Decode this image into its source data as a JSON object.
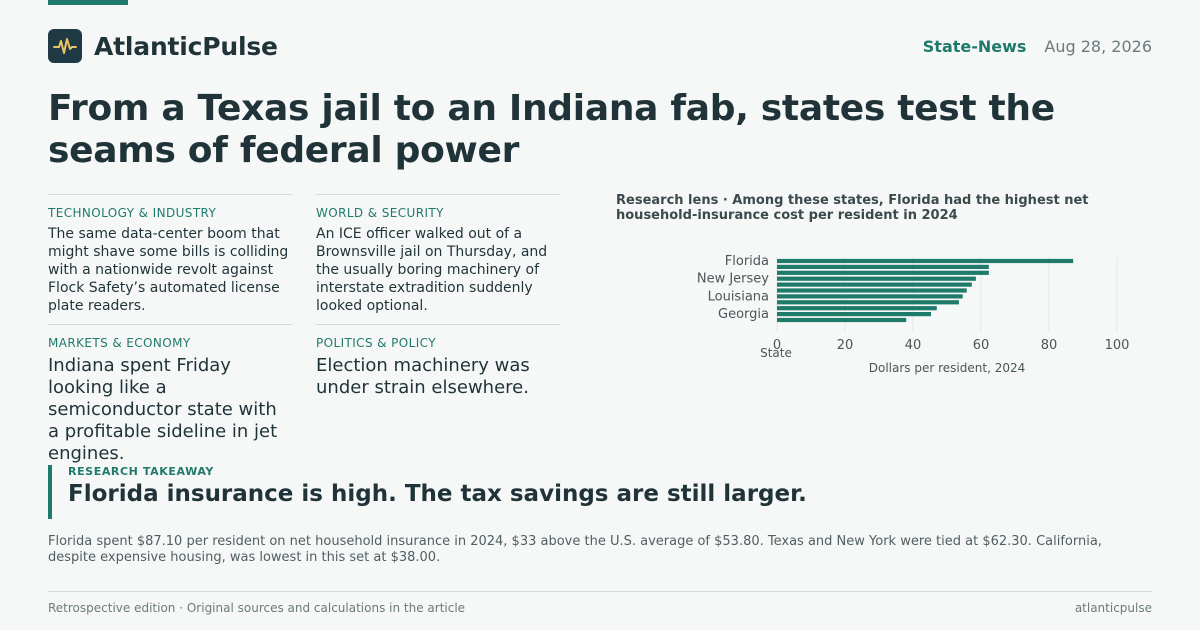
{
  "brand": {
    "name": "AtlanticPulse",
    "logo_icon": "pulse-line-icon"
  },
  "meta": {
    "section": "State-News",
    "date": "Aug 28, 2026"
  },
  "headline": "From a Texas jail to an Indiana fab, states test the seams of federal power",
  "stories": [
    {
      "category": "TECHNOLOGY & INDUSTRY",
      "text": "The same data-center boom that might shave some bills is colliding with a nationwide revolt against Flock Safety’s automated license plate readers."
    },
    {
      "category": "WORLD & SECURITY",
      "text": "An ICE officer walked out of a Brownsville jail on Thursday, and the usually boring machinery of interstate extradition suddenly looked optional."
    },
    {
      "category": "MARKETS & ECONOMY",
      "text": "Indiana spent Friday looking like a semiconductor state with a profitable sideline in jet engines."
    },
    {
      "category": "POLITICS & POLICY",
      "text": "Election machinery was under strain elsewhere."
    }
  ],
  "chart_title": "Research lens · Among these states, Florida had the highest net household-insurance cost per resident in 2024",
  "chart_data": {
    "type": "bar",
    "orientation": "horizontal",
    "categories": [
      "Florida",
      "",
      "",
      "New Jersey",
      "",
      "",
      "Louisiana",
      "",
      "",
      "Georgia",
      "",
      ""
    ],
    "values": [
      87.1,
      62.3,
      62.3,
      58.5,
      57.3,
      55.8,
      54.6,
      53.5,
      47.0,
      45.3,
      38.0,
      null
    ],
    "xlabel": "Dollars per resident, 2024",
    "ylabel": "State",
    "xlim": [
      0,
      100
    ],
    "xticks": [
      "0",
      "20",
      "40",
      "60",
      "80",
      "100"
    ],
    "bar_color": "#1f7a6c",
    "grid": true
  },
  "takeaway": {
    "label": "RESEARCH TAKEAWAY",
    "text": "Florida insurance is high. The tax savings are still larger."
  },
  "body": "Florida spent $87.10 per resident on net household insurance in 2024, $33 above the U.S. average of $53.80. Texas and New York were tied at $62.30. California, despite expensive housing, was lowest in this set at $38.00.",
  "footer": {
    "left": "Retrospective edition · Original sources and calculations in the article",
    "right": "atlanticpulse"
  }
}
